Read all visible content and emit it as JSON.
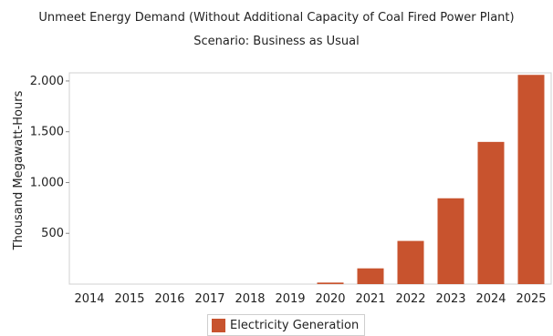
{
  "chart_data": {
    "type": "bar",
    "title": "Unmeet Energy Demand (Without Additional Capacity of Coal Fired Power Plant)",
    "subtitle": "Scenario: Business as Usual",
    "xlabel": "",
    "ylabel": "Thousand Megawatt-Hours",
    "categories": [
      "2014",
      "2015",
      "2016",
      "2017",
      "2018",
      "2019",
      "2020",
      "2021",
      "2022",
      "2023",
      "2024",
      "2025"
    ],
    "series": [
      {
        "name": "Electricity Generation",
        "color": "#c8532e",
        "values": [
          0,
          0,
          0,
          0,
          0,
          0,
          15,
          155,
          425,
          845,
          1400,
          2060
        ]
      }
    ],
    "ylim": [
      0,
      2080
    ],
    "yticks": [
      {
        "value": 500,
        "label": "500"
      },
      {
        "value": 1000,
        "label": "1.000"
      },
      {
        "value": 1500,
        "label": "1.500"
      },
      {
        "value": 2000,
        "label": "2.000"
      }
    ],
    "grid": false,
    "legend_position": "bottom"
  }
}
